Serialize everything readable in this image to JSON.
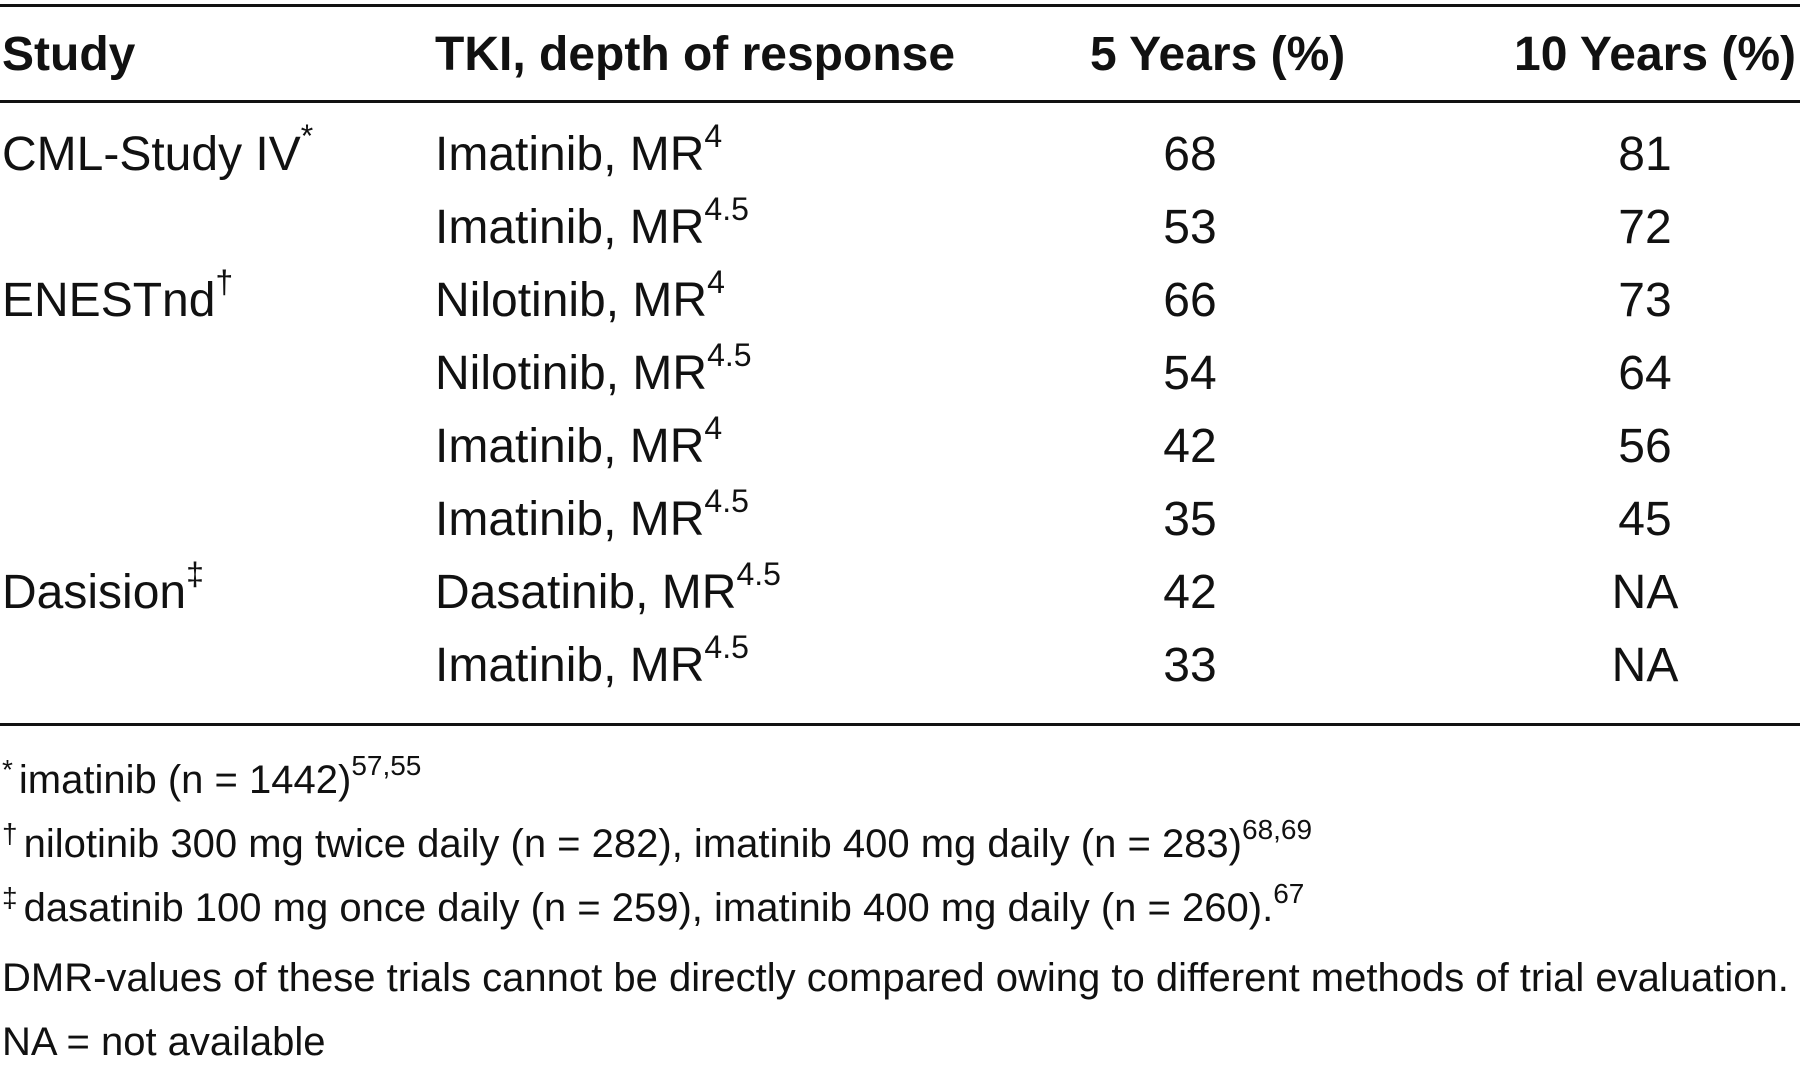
{
  "table": {
    "headers": [
      "Study",
      "TKI, depth of response",
      "5 Years (%)",
      "10 Years (%)"
    ],
    "rows": [
      {
        "study": "CML-Study IV",
        "study_mark": "*",
        "tki": "Imatinib, MR",
        "exp": "4",
        "y5": "68",
        "y10": "81"
      },
      {
        "study": "",
        "study_mark": "",
        "tki": "Imatinib, MR",
        "exp": "4.5",
        "y5": "53",
        "y10": "72"
      },
      {
        "study": "ENESTnd",
        "study_mark": "†",
        "tki": "Nilotinib, MR",
        "exp": "4",
        "y5": "66",
        "y10": "73"
      },
      {
        "study": "",
        "study_mark": "",
        "tki": "Nilotinib, MR",
        "exp": "4.5",
        "y5": "54",
        "y10": "64"
      },
      {
        "study": "",
        "study_mark": "",
        "tki": "Imatinib, MR",
        "exp": "4",
        "y5": "42",
        "y10": "56"
      },
      {
        "study": "",
        "study_mark": "",
        "tki": "Imatinib, MR",
        "exp": "4.5",
        "y5": "35",
        "y10": "45"
      },
      {
        "study": "Dasision",
        "study_mark": "‡",
        "tki": "Dasatinib, MR",
        "exp": "4.5",
        "y5": "42",
        "y10": "NA"
      },
      {
        "study": "",
        "study_mark": "",
        "tki": "Imatinib, MR",
        "exp": "4.5",
        "y5": "33",
        "y10": "NA"
      }
    ]
  },
  "footnotes": [
    {
      "mark": "*",
      "text": "imatinib (n = 1442)",
      "ref": "57,55"
    },
    {
      "mark": "†",
      "text": "nilotinib 300 mg twice daily (n = 282), imatinib 400 mg daily (n = 283)",
      "ref": "68,69"
    },
    {
      "mark": "‡",
      "text": "dasatinib 100 mg once daily (n = 259), imatinib 400 mg daily (n = 260).",
      "ref": "67"
    },
    {
      "mark": "",
      "text": "DMR-values of these trials cannot be directly compared owing to different methods of trial evaluation.",
      "ref": ""
    },
    {
      "mark": "",
      "text": "NA = not available",
      "ref": ""
    }
  ]
}
